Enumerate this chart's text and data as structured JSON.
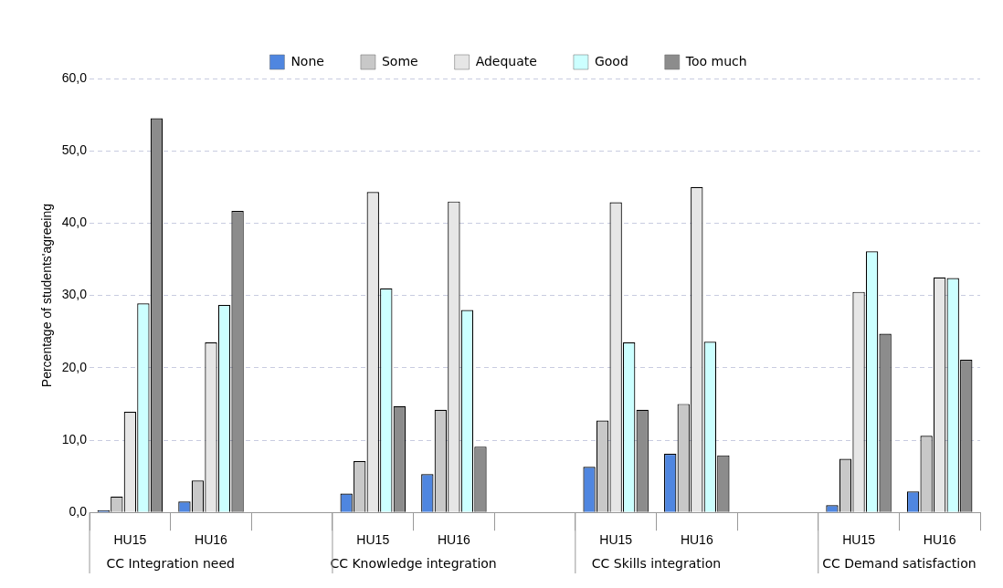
{
  "chart_data": {
    "type": "bar",
    "ylabel": "Percentage of students'agreeing",
    "categories": [
      "HU15",
      "HU16",
      null,
      "HU15",
      "HU16",
      null,
      "HU15",
      "HU16",
      null,
      "HU15",
      "HU16"
    ],
    "annotations": [
      "CC Integration need",
      "CC Knowledge integration",
      "CC Skills integration",
      "CC Demand satisfaction"
    ],
    "series": [
      {
        "name": "None",
        "color": "#4f86e0",
        "values": [
          0.3,
          1.5,
          null,
          2.6,
          5.3,
          null,
          6.3,
          8.1,
          null,
          1.0,
          2.9
        ]
      },
      {
        "name": "Some",
        "color": "#c8c8c8",
        "values": [
          2.2,
          4.4,
          null,
          7.1,
          14.2,
          null,
          12.7,
          15.0,
          null,
          7.4,
          10.6
        ]
      },
      {
        "name": "Adequate",
        "color": "#e6e6e6",
        "values": [
          13.9,
          23.5,
          null,
          44.3,
          43.0,
          null,
          42.9,
          45.0,
          null,
          30.5,
          32.5
        ]
      },
      {
        "name": "Good",
        "color": "#ccffff",
        "values": [
          28.9,
          28.7,
          null,
          31.0,
          28.0,
          null,
          23.5,
          23.6,
          null,
          36.1,
          32.4
        ]
      },
      {
        "name": "Too much",
        "color": "#8c8c8c",
        "values": [
          54.5,
          41.7,
          null,
          14.7,
          9.1,
          null,
          14.2,
          7.9,
          null,
          24.7,
          21.1
        ]
      }
    ],
    "ylim": [
      0,
      60
    ],
    "yticks": [
      {
        "value": 0,
        "label": "0,0"
      },
      {
        "value": 10,
        "label": "10,0"
      },
      {
        "value": 20,
        "label": "20,0"
      },
      {
        "value": 30,
        "label": "30,0"
      },
      {
        "value": 40,
        "label": "40,0"
      },
      {
        "value": 50,
        "label": "50,0"
      },
      {
        "value": 60,
        "label": "60,0"
      }
    ],
    "grid": "y",
    "legend": "top"
  }
}
